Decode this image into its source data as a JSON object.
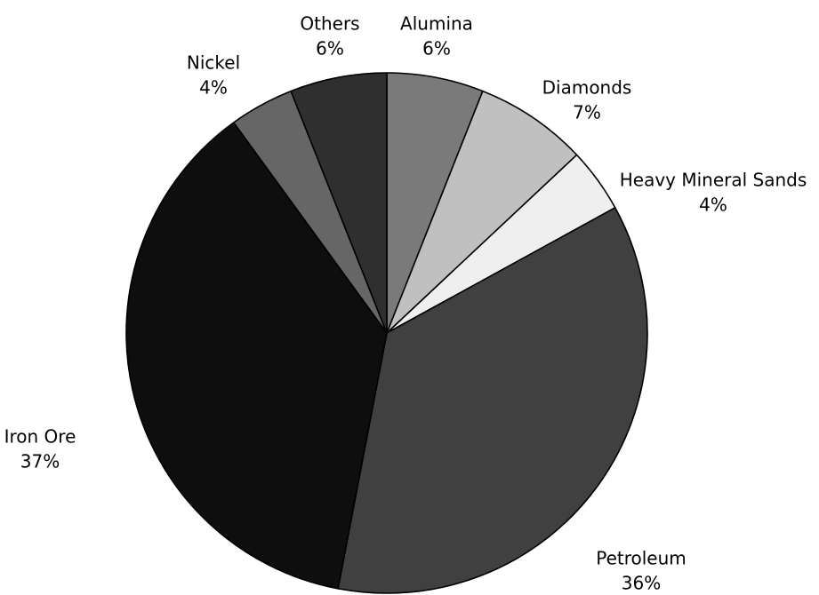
{
  "chart_data": {
    "type": "pie",
    "start_angle_deg": 0,
    "direction": "clockwise",
    "slice_outline_color": "#000000",
    "slices": [
      {
        "label": "Alumina",
        "value": 6,
        "value_label": "6%",
        "color": "#7a7a7a"
      },
      {
        "label": "Diamonds",
        "value": 7,
        "value_label": "7%",
        "color": "#c0c0c0"
      },
      {
        "label": "Heavy Mineral Sands",
        "value": 4,
        "value_label": "4%",
        "color": "#efefef"
      },
      {
        "label": "Petroleum",
        "value": 36,
        "value_label": "36%",
        "color": "#404040"
      },
      {
        "label": "Iron Ore",
        "value": 37,
        "value_label": "37%",
        "color": "#0e0e0e"
      },
      {
        "label": "Nickel",
        "value": 4,
        "value_label": "4%",
        "color": "#666666"
      },
      {
        "label": "Others",
        "value": 6,
        "value_label": "6%",
        "color": "#2f2f2f"
      }
    ]
  }
}
